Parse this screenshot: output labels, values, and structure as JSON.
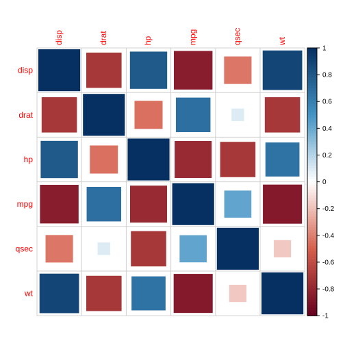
{
  "chart_data": {
    "type": "heatmap",
    "style": "square-size-by-magnitude",
    "variables": [
      "disp",
      "drat",
      "hp",
      "mpg",
      "qsec",
      "wt"
    ],
    "matrix": [
      [
        1.0,
        -0.71,
        0.79,
        -0.85,
        -0.43,
        0.89
      ],
      [
        -0.71,
        1.0,
        -0.45,
        0.68,
        0.09,
        -0.71
      ],
      [
        0.79,
        -0.45,
        1.0,
        -0.78,
        -0.71,
        0.66
      ],
      [
        -0.85,
        0.68,
        -0.78,
        1.0,
        0.42,
        -0.87
      ],
      [
        -0.43,
        0.09,
        -0.71,
        0.42,
        1.0,
        -0.17
      ],
      [
        0.89,
        -0.71,
        0.66,
        -0.87,
        -0.17,
        1.0
      ]
    ],
    "colorbar": {
      "range": [
        -1,
        1
      ],
      "ticks": [
        "-1",
        "-0.8",
        "-0.6",
        "-0.4",
        "-0.2",
        "0",
        "0.2",
        "0.4",
        "0.6",
        "0.8",
        "1"
      ]
    },
    "colors": {
      "negative_strong": "#67001F",
      "negative_mid": "#D6604D",
      "neutral": "#FFFFFF",
      "positive_mid": "#4393C3",
      "positive_strong": "#053061",
      "label_text": "#FF0000",
      "grid": "#D0D0D0",
      "tick_text": "#000000"
    }
  }
}
